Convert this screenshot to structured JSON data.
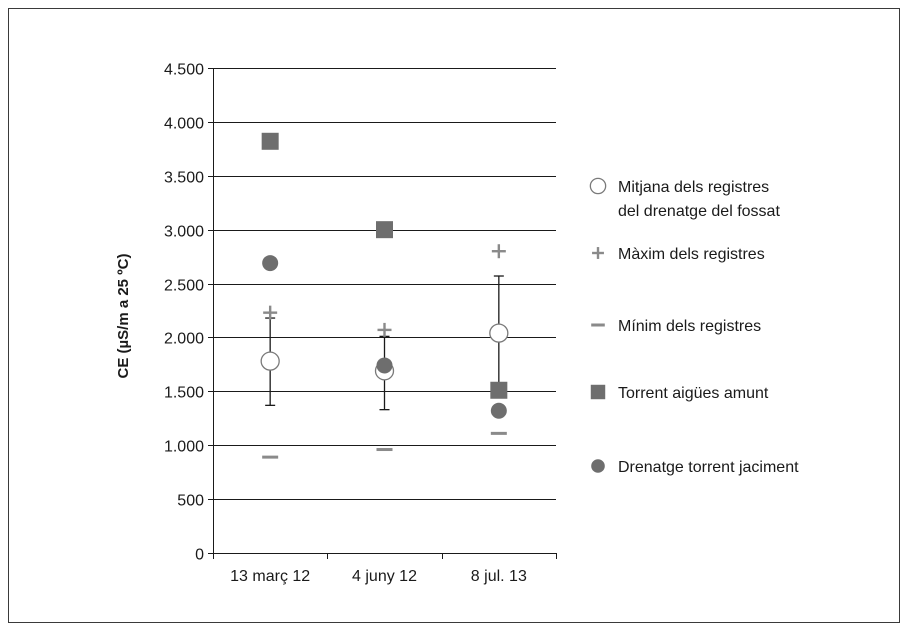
{
  "chart_data": {
    "type": "scatter",
    "ylabel": "CE (µS/m a 25 ºC)",
    "xlabel": "",
    "ylim": [
      0,
      4500
    ],
    "ytick_values": [
      0,
      500,
      1000,
      1500,
      2000,
      2500,
      3000,
      3500,
      4000,
      4500
    ],
    "ytick_labels": [
      "0",
      "500",
      "1.000",
      "1.500",
      "2.000",
      "2.500",
      "3.000",
      "3.500",
      "4.000",
      "4.500"
    ],
    "categories": [
      "13 març 12",
      "4 juny 12",
      "8 jul. 13"
    ],
    "grid": true,
    "legend_position": "right",
    "series": [
      {
        "key": "mitjana",
        "name": "Mitjana dels registres del drenatge del fossat",
        "legend_lines": [
          "Mitjana dels registres",
          "del drenatge del fossat"
        ],
        "marker": "open-circle",
        "color": "#7a7a7a",
        "values": [
          1780,
          1690,
          2040
        ],
        "error_low": [
          1370,
          1330,
          1500
        ],
        "error_high": [
          2180,
          2010,
          2570
        ]
      },
      {
        "key": "maxim",
        "name": "Màxim dels registres",
        "legend_lines": [
          "Màxim dels registres"
        ],
        "marker": "plus",
        "color": "#8a8a8a",
        "values": [
          2230,
          2070,
          2800
        ]
      },
      {
        "key": "minim",
        "name": "Mínim dels registres",
        "legend_lines": [
          "Mínim dels registres"
        ],
        "marker": "dash",
        "color": "#8a8a8a",
        "values": [
          890,
          960,
          1110
        ]
      },
      {
        "key": "torrent",
        "name": "Torrent aigües amunt",
        "legend_lines": [
          "Torrent aigües amunt"
        ],
        "marker": "square",
        "color": "#6e6e6e",
        "values": [
          3820,
          3000,
          1510
        ]
      },
      {
        "key": "drenatge",
        "name": "Drenatge torrent jaciment",
        "legend_lines": [
          "Drenatge torrent jaciment"
        ],
        "marker": "filled-circle",
        "color": "#6e6e6e",
        "values": [
          2690,
          1740,
          1320
        ]
      }
    ]
  }
}
